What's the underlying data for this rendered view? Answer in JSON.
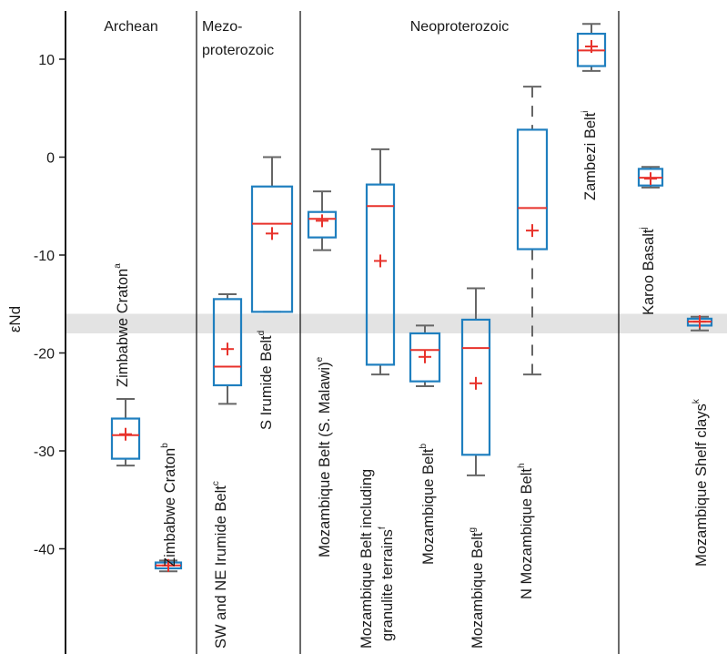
{
  "chart_data": {
    "type": "boxplot",
    "ylabel": "εNd",
    "ylim": [
      -48,
      14.5
    ],
    "yticks": [
      10,
      0,
      -10,
      -20,
      -30,
      -40
    ],
    "shaded_band": [
      -16,
      -18
    ],
    "periods": [
      {
        "label": "Archean",
        "label2": "",
        "start": 0,
        "end": 2
      },
      {
        "label": "Mezo-",
        "label2": "proterozoic",
        "start": 2,
        "end": 4
      },
      {
        "label": "Neoproterozoic",
        "label2": "",
        "start": 4,
        "end": 10
      },
      {
        "label": "",
        "label2": "",
        "start": 10,
        "end": 12
      }
    ],
    "series": [
      {
        "label": "Zimbabwe Craton",
        "sup": "a",
        "min": -31.5,
        "q1": -30.8,
        "median": -28.4,
        "q3": -26.7,
        "max": -24.7,
        "mean": -28.3
      },
      {
        "label": "Zimbabwe Craton",
        "sup": "b",
        "min": -42.3,
        "q1": -42.0,
        "median": -41.7,
        "q3": -41.4,
        "max": -41.2,
        "mean": -41.7
      },
      {
        "label": "SW and NE Irumide Belt",
        "sup": "c",
        "min": -25.2,
        "q1": -23.3,
        "median": -21.4,
        "q3": -14.5,
        "max": -14.0,
        "mean": -19.6
      },
      {
        "label": "S Irumide Belt",
        "sup": "d",
        "min": -15.8,
        "q1": -15.8,
        "median": -6.8,
        "q3": -3.0,
        "max": 0.0,
        "mean": -7.8
      },
      {
        "label": "Mozambique Belt (S. Malawi)",
        "sup": "e",
        "min": -9.5,
        "q1": -8.2,
        "median": -6.3,
        "q3": -5.6,
        "max": -3.5,
        "mean": -6.5
      },
      {
        "label": "Mozambique Belt including",
        "label2": "granulite terrains",
        "sup": "f",
        "min": -22.2,
        "q1": -21.2,
        "median": -5.0,
        "q3": -2.8,
        "max": 0.8,
        "mean": -10.6
      },
      {
        "label": "Mozambique Belt",
        "sup": "b",
        "min": -23.4,
        "q1": -22.9,
        "median": -19.7,
        "q3": -18.0,
        "max": -17.2,
        "mean": -20.4
      },
      {
        "label": "Mozambique Belt",
        "sup": "g",
        "min": -32.5,
        "q1": -30.4,
        "median": -19.5,
        "q3": -16.6,
        "max": -13.4,
        "mean": -23.1
      },
      {
        "label": "N Mozambique Belt",
        "sup": "h",
        "min": -22.2,
        "q1": -9.4,
        "median": -5.2,
        "q3": 2.8,
        "max": 7.2,
        "mean": -7.5
      },
      {
        "label": "Zambezi Belt",
        "sup": "i",
        "min": 8.8,
        "q1": 9.3,
        "median": 10.9,
        "q3": 12.6,
        "max": 13.6,
        "mean": 11.3
      },
      {
        "label": "Karoo Basalt",
        "sup": "j",
        "min": -3.1,
        "q1": -2.9,
        "median": -2.1,
        "q3": -1.2,
        "max": -1.0,
        "mean": -2.2
      },
      {
        "label": "Mozambique Shelf clays",
        "sup": "k",
        "min": -17.7,
        "q1": -17.2,
        "median": -16.8,
        "q3": -16.5,
        "max": -16.3,
        "mean": -16.8
      }
    ],
    "colors": {
      "box": "#1f7fbf",
      "median": "#e8322b",
      "mean": "#e8322b",
      "whisker": "#666666",
      "band": "#d9d9d9",
      "axis": "#1a1a1a"
    }
  }
}
